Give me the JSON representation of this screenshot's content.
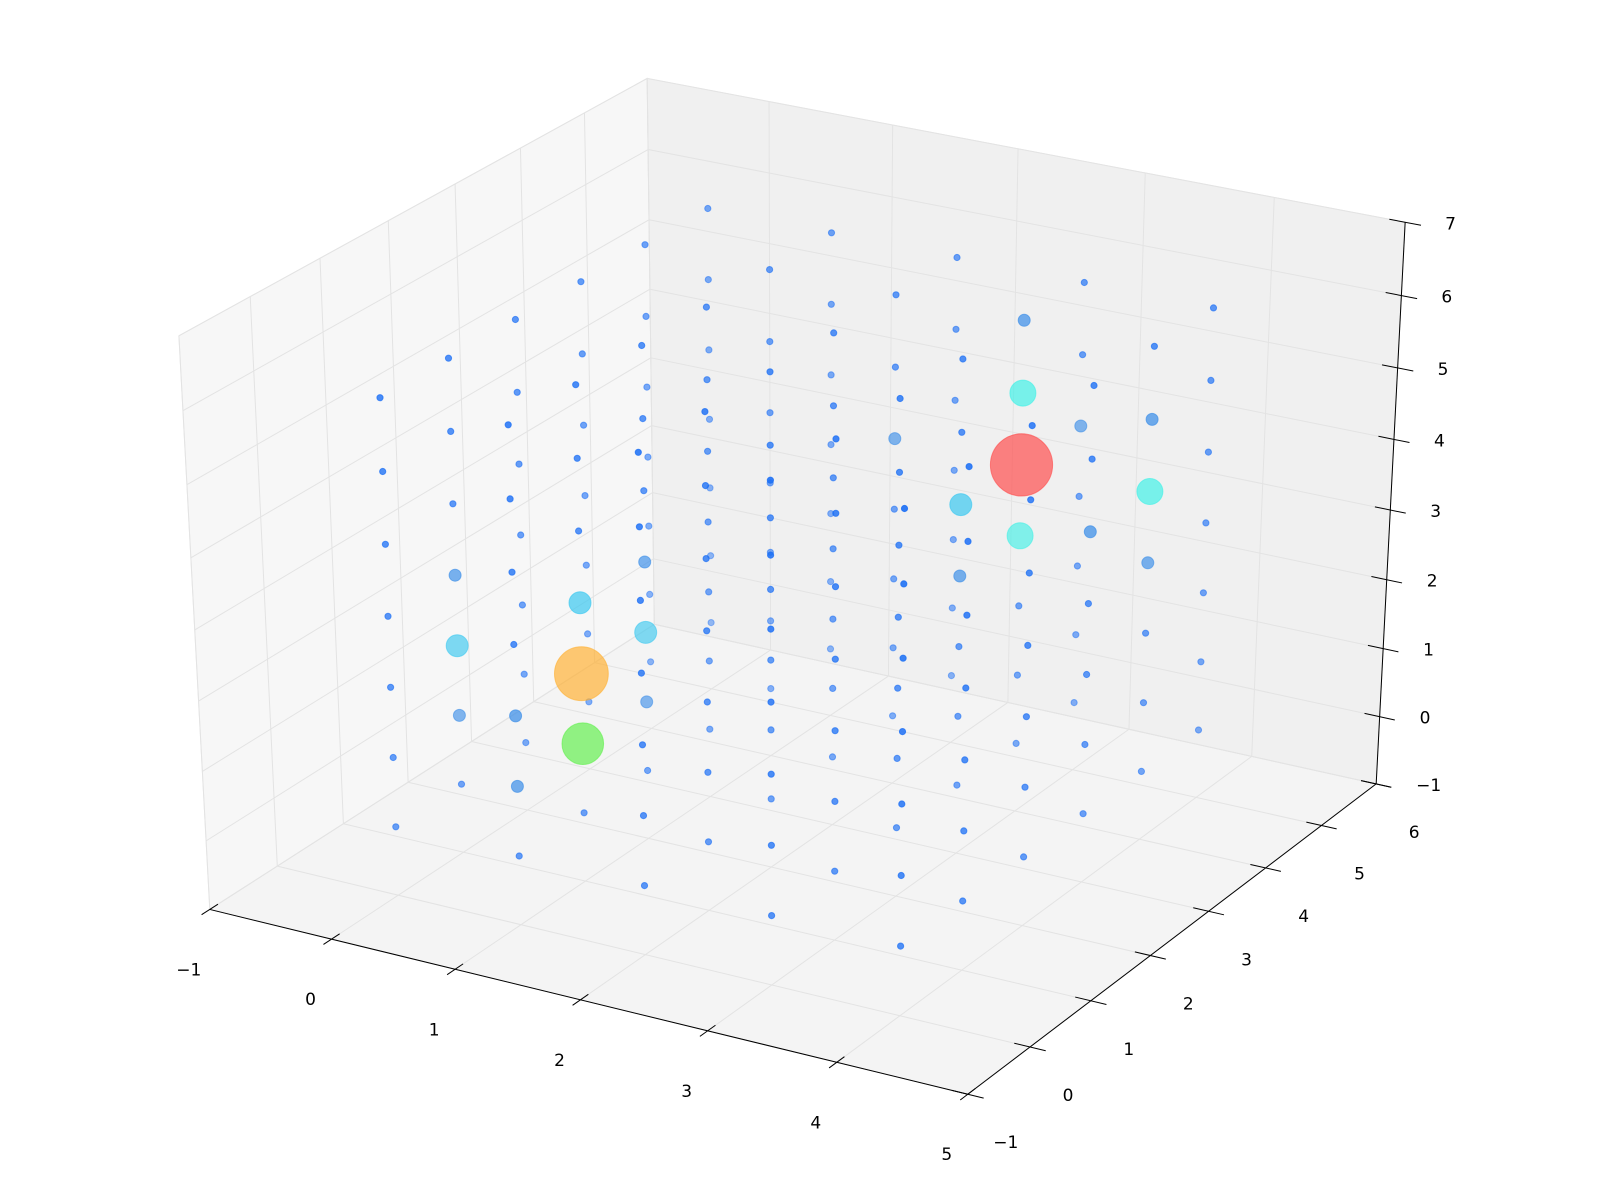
{
  "chart_data": {
    "type": "scatter3d",
    "xlim": [
      -1,
      5
    ],
    "ylim": [
      -1,
      6
    ],
    "zlim": [
      -1,
      7
    ],
    "xticks": [
      {
        "value": -1,
        "label": "−1"
      },
      0,
      1,
      2,
      3,
      4,
      5
    ],
    "yticks": [
      {
        "value": -1,
        "label": "−1"
      },
      0,
      1,
      2,
      3,
      4,
      5,
      6
    ],
    "zticks": [
      {
        "value": -1,
        "label": "−1"
      },
      0,
      1,
      2,
      3,
      4,
      5,
      6,
      7
    ],
    "grid": true,
    "series": [
      {
        "color": "#1a6ef5",
        "size": 20,
        "x": [
          0,
          0,
          0,
          0,
          0,
          0,
          0,
          0,
          0,
          0,
          0,
          0,
          0,
          0,
          0,
          0,
          0,
          0,
          0,
          0,
          0,
          0,
          0,
          0,
          0,
          0,
          0,
          0,
          0,
          0,
          0,
          0,
          0,
          0,
          0,
          0,
          0,
          0,
          0,
          1,
          1,
          1,
          1,
          1,
          1,
          1,
          1,
          1,
          1,
          1,
          1,
          1,
          1,
          1,
          1,
          1,
          1,
          1,
          1,
          1,
          1,
          1,
          1,
          1,
          1,
          1,
          1,
          1,
          1,
          1,
          1,
          1,
          1,
          2,
          2,
          2,
          2,
          2,
          2,
          2,
          2,
          2,
          2,
          2,
          2,
          2,
          2,
          2,
          2,
          2,
          2,
          2,
          2,
          2,
          2,
          2,
          2,
          2,
          2,
          2,
          2,
          2,
          2,
          2,
          2,
          2,
          2,
          2,
          2,
          2,
          2,
          2,
          2,
          2,
          3,
          3,
          3,
          3,
          3,
          3,
          3,
          3,
          3,
          3,
          3,
          3,
          3,
          3,
          3,
          3,
          3,
          3,
          3,
          3,
          3,
          3,
          3,
          3,
          3,
          3,
          3,
          3,
          3,
          3,
          3,
          3,
          3,
          3,
          3,
          4,
          4,
          4,
          4,
          4,
          4,
          4,
          4,
          4,
          4,
          4,
          4,
          4,
          4,
          4,
          4,
          4,
          4,
          4,
          4,
          4,
          4,
          4,
          4,
          4,
          4,
          4,
          4,
          4,
          4,
          4,
          4,
          4,
          4,
          4,
          4,
          4,
          4
        ],
        "y": [
          0,
          0,
          0,
          0,
          0,
          0,
          0,
          1,
          1,
          1,
          1,
          2,
          2,
          2,
          2,
          2,
          2,
          2,
          3,
          3,
          3,
          3,
          3,
          3,
          3,
          4,
          4,
          4,
          4,
          4,
          4,
          4,
          5,
          5,
          5,
          5,
          5,
          5,
          5,
          0,
          0,
          0,
          0,
          0,
          1,
          1,
          1,
          1,
          2,
          2,
          2,
          2,
          3,
          3,
          3,
          3,
          3,
          3,
          3,
          4,
          4,
          4,
          4,
          4,
          4,
          4,
          5,
          5,
          5,
          5,
          5,
          5,
          5,
          0,
          0,
          0,
          0,
          0,
          0,
          0,
          1,
          1,
          1,
          1,
          1,
          1,
          1,
          2,
          2,
          2,
          2,
          2,
          2,
          2,
          3,
          3,
          3,
          3,
          3,
          3,
          3,
          4,
          4,
          4,
          4,
          4,
          4,
          5,
          5,
          5,
          5,
          5,
          5,
          5,
          0,
          0,
          0,
          0,
          0,
          0,
          0,
          1,
          1,
          1,
          1,
          1,
          1,
          1,
          2,
          2,
          2,
          2,
          2,
          2,
          2,
          3,
          3,
          3,
          3,
          3,
          4,
          4,
          4,
          5,
          5,
          5,
          5,
          5,
          5,
          0,
          0,
          0,
          0,
          0,
          0,
          0,
          1,
          1,
          1,
          1,
          1,
          1,
          1,
          2,
          2,
          2,
          2,
          2,
          2,
          2,
          3,
          3,
          3,
          3,
          3,
          3,
          4,
          4,
          4,
          4,
          5,
          5,
          5,
          5,
          5,
          5,
          5
        ],
        "z": [
          0,
          1,
          2,
          3,
          4,
          5,
          6,
          0,
          4,
          5,
          6,
          0,
          1,
          2,
          3,
          4,
          5,
          6,
          0,
          1,
          2,
          3,
          4,
          5,
          6,
          0,
          1,
          2,
          3,
          4,
          5,
          6,
          0,
          1,
          2,
          3,
          4,
          5,
          6,
          0,
          3,
          4,
          5,
          6,
          0,
          4,
          5,
          6,
          0,
          4,
          5,
          6,
          0,
          1,
          2,
          3,
          4,
          5,
          6,
          0,
          1,
          2,
          3,
          4,
          5,
          6,
          0,
          1,
          2,
          3,
          4,
          5,
          6,
          0,
          1,
          2,
          3,
          4,
          5,
          6,
          0,
          1,
          2,
          3,
          4,
          5,
          6,
          0,
          1,
          2,
          3,
          4,
          5,
          6,
          0,
          1,
          2,
          3,
          4,
          5,
          6,
          0,
          1,
          2,
          3,
          5,
          6,
          0,
          1,
          2,
          3,
          4,
          5,
          6,
          0,
          1,
          2,
          3,
          4,
          5,
          6,
          0,
          1,
          2,
          3,
          4,
          5,
          6,
          0,
          1,
          2,
          3,
          4,
          5,
          6,
          0,
          1,
          2,
          5,
          6,
          0,
          1,
          2,
          0,
          1,
          2,
          3,
          5,
          6,
          0,
          1,
          2,
          3,
          4,
          5,
          6,
          0,
          1,
          2,
          3,
          4,
          5,
          6,
          0,
          1,
          2,
          3,
          4,
          5,
          6,
          0,
          1,
          2,
          3,
          5,
          6,
          0,
          1,
          2,
          6,
          0,
          1,
          2,
          3,
          4,
          5,
          6
        ]
      },
      {
        "color": "#3a8de8",
        "size": 75,
        "x": [
          0,
          0,
          1,
          1,
          1,
          1,
          2,
          3,
          3,
          3,
          4,
          4,
          4
        ],
        "y": [
          1,
          1,
          0,
          0,
          2,
          2,
          4,
          3,
          4,
          5,
          3,
          4,
          4
        ],
        "z": [
          1,
          3,
          1,
          2,
          1,
          3,
          4,
          3,
          6,
          4,
          4,
          3,
          5
        ]
      },
      {
        "color": "#3cc8f0",
        "size": 250,
        "x": [
          0,
          1,
          1,
          3
        ],
        "y": [
          1,
          1,
          2,
          3
        ],
        "z": [
          2,
          3,
          2,
          4
        ]
      },
      {
        "color": "#40f0e6",
        "size": 350,
        "x": [
          3,
          3,
          4
        ],
        "y": [
          4,
          4,
          4
        ],
        "z": [
          3,
          5,
          4
        ]
      },
      {
        "color": "#5cf048",
        "size": 900,
        "x": [
          1
        ],
        "y": [
          1
        ],
        "z": [
          1
        ]
      },
      {
        "color": "#ffb030",
        "size": 1500,
        "x": [
          1
        ],
        "y": [
          1
        ],
        "z": [
          2
        ]
      },
      {
        "color": "#ff4848",
        "size": 2000,
        "x": [
          3
        ],
        "y": [
          4
        ],
        "z": [
          4
        ]
      }
    ]
  }
}
